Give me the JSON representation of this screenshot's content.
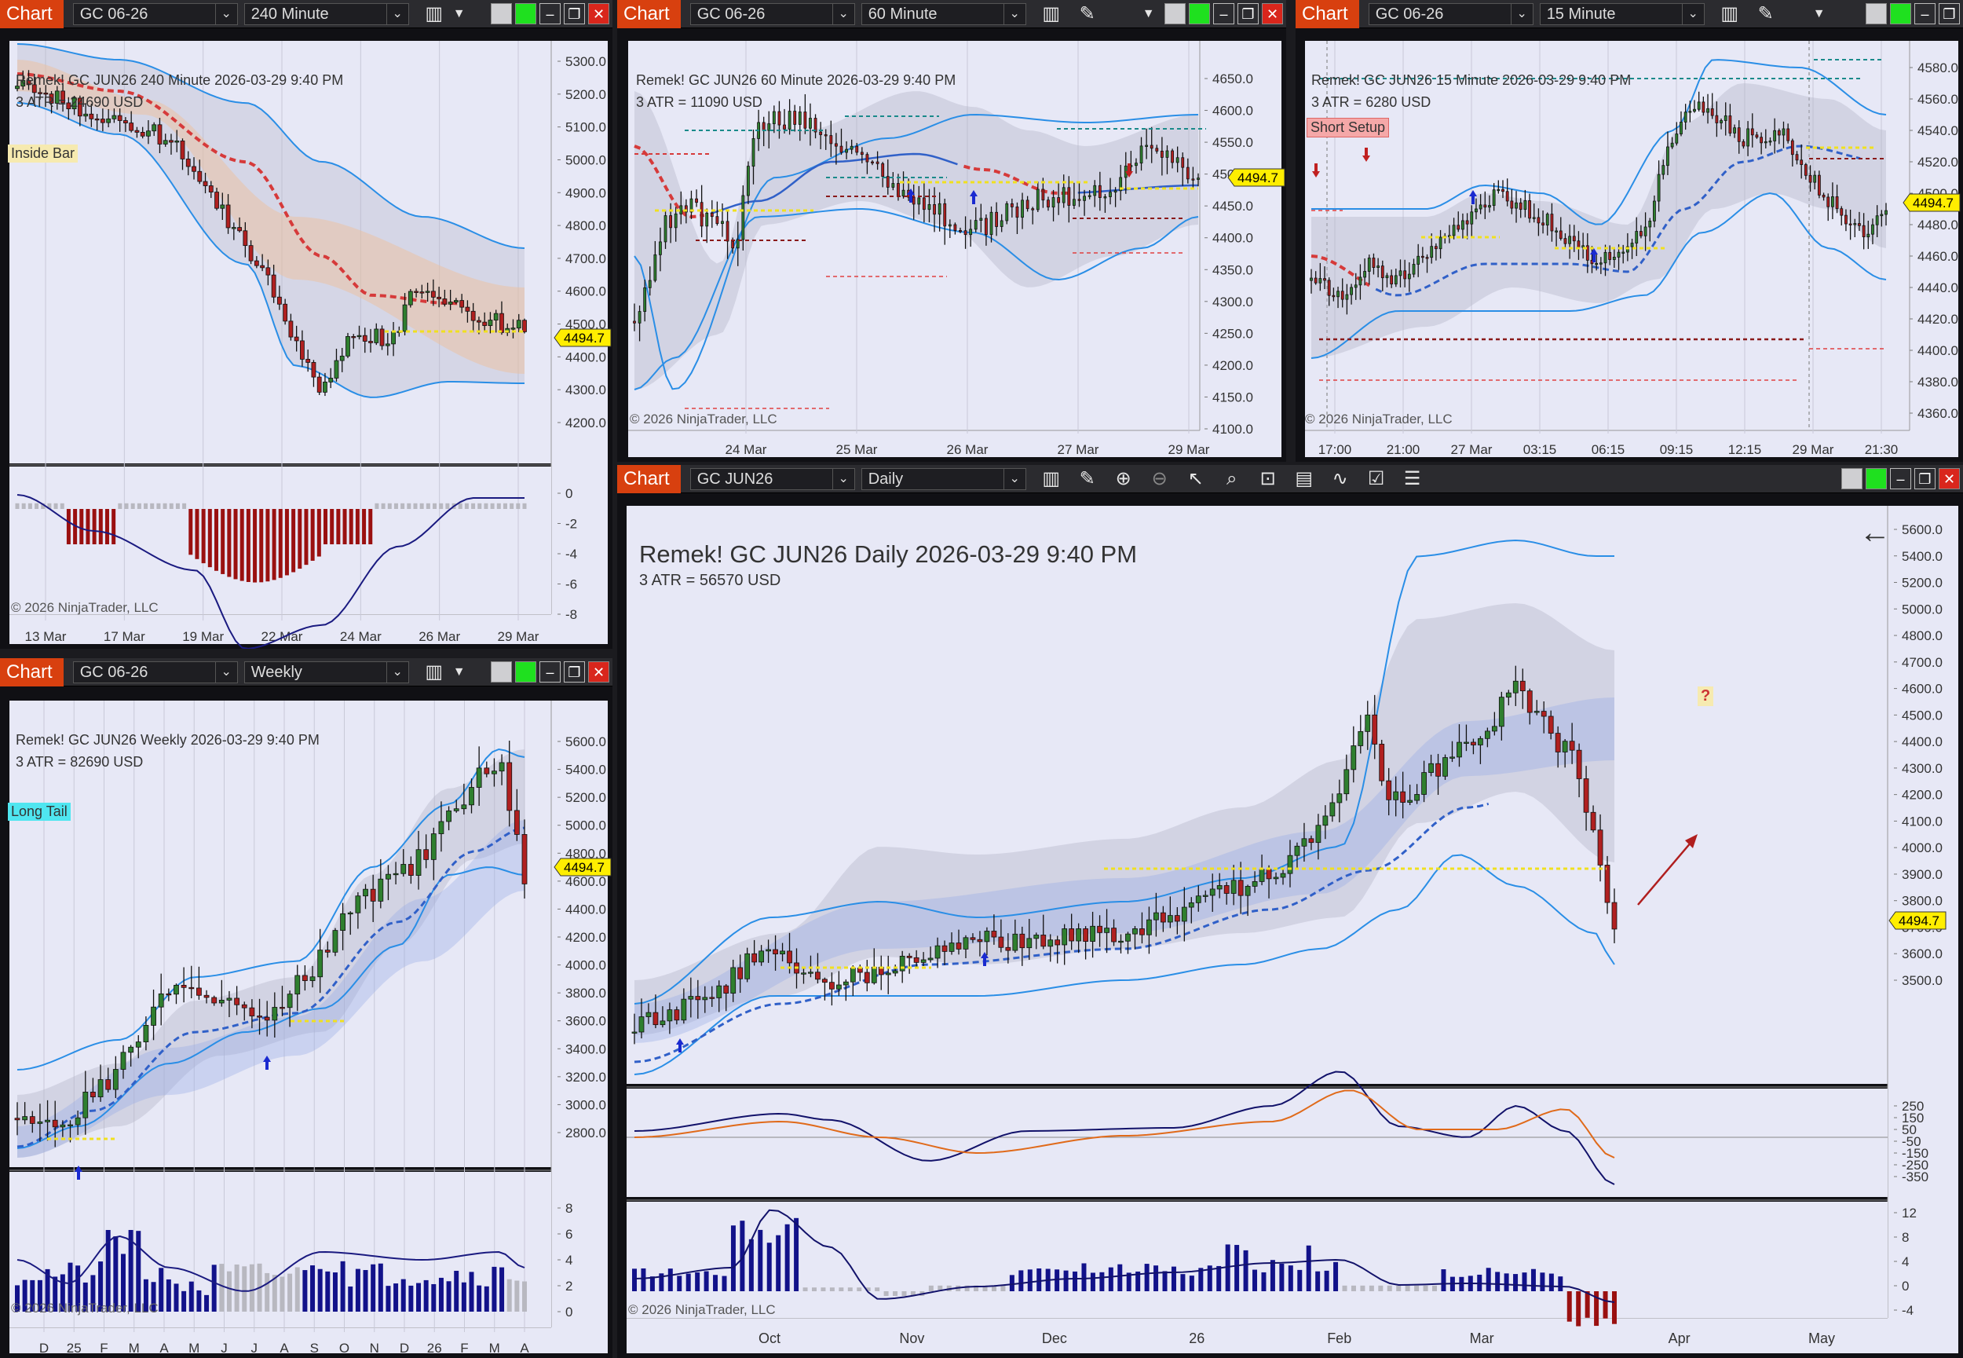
{
  "title_badge": "Chart",
  "last_price": "4494.7",
  "copyright": "© 2026 NinjaTrader, LLC",
  "windows": {
    "w240": {
      "instrument": "GC 06-26",
      "period": "240 Minute",
      "header": "Remek!  GC JUN26  240 Minute  2026-03-29 9:40 PM",
      "atr": "3 ATR = 24690 USD",
      "tag": "Inside Bar",
      "price_ticks": [
        "5300.0",
        "5200.0",
        "5100.0",
        "5000.0",
        "4900.0",
        "4800.0",
        "4700.0",
        "4600.0",
        "4500.0",
        "4400.0",
        "4300.0",
        "4200.0"
      ],
      "sub_ticks": [
        "0",
        "-2",
        "-4",
        "-6",
        "-8"
      ],
      "time_ticks": [
        "13 Mar",
        "17 Mar",
        "19 Mar",
        "22 Mar",
        "24 Mar",
        "26 Mar",
        "29 Mar"
      ]
    },
    "w60": {
      "instrument": "GC 06-26",
      "period": "60 Minute",
      "header": "Remek!  GC JUN26  60 Minute  2026-03-29 9:40 PM",
      "atr": "3 ATR = 11090 USD",
      "price_ticks": [
        "4650.0",
        "4600.0",
        "4550.0",
        "4500.0",
        "4450.0",
        "4400.0",
        "4350.0",
        "4300.0",
        "4250.0",
        "4200.0",
        "4150.0",
        "4100.0"
      ],
      "time_ticks": [
        "24 Mar",
        "25 Mar",
        "26 Mar",
        "27 Mar",
        "29 Mar"
      ]
    },
    "w15": {
      "instrument": "GC 06-26",
      "period": "15 Minute",
      "header": "Remek!  GC JUN26  15 Minute  2026-03-29 9:40 PM",
      "atr": "3 ATR = 6280 USD",
      "tag": "Short Setup",
      "price_ticks": [
        "4580.0",
        "4560.0",
        "4540.0",
        "4520.0",
        "4500.0",
        "4480.0",
        "4460.0",
        "4440.0",
        "4420.0",
        "4400.0",
        "4380.0",
        "4360.0"
      ],
      "time_ticks": [
        "17:00",
        "21:00",
        "27 Mar",
        "03:15",
        "06:15",
        "09:15",
        "12:15",
        "29 Mar",
        "21:30"
      ]
    },
    "wWeekly": {
      "instrument": "GC 06-26",
      "period": "Weekly",
      "header": "Remek!  GC JUN26  Weekly  2026-03-29 9:40 PM",
      "atr": "3 ATR = 82690 USD",
      "tag": "Long Tail",
      "price_ticks": [
        "5600.0",
        "5400.0",
        "5200.0",
        "5000.0",
        "4800.0",
        "4600.0",
        "4400.0",
        "4200.0",
        "4000.0",
        "3800.0",
        "3600.0",
        "3400.0",
        "3200.0",
        "3000.0",
        "2800.0"
      ],
      "sub_ticks": [
        "8",
        "6",
        "4",
        "2",
        "0"
      ],
      "time_ticks": [
        "D",
        "25",
        "F",
        "M",
        "A",
        "M",
        "J",
        "J",
        "A",
        "S",
        "O",
        "N",
        "D",
        "26",
        "F",
        "M",
        "A"
      ]
    },
    "wDaily": {
      "instrument": "GC JUN26",
      "period": "Daily",
      "header": "Remek!  GC JUN26  Daily  2026-03-29 9:40 PM",
      "atr": "3 ATR = 56570 USD",
      "question": "?",
      "price_ticks": [
        "5600.0",
        "5400.0",
        "5200.0",
        "5000.0",
        "4800.0",
        "4700.0",
        "4600.0",
        "4500.0",
        "4400.0",
        "4300.0",
        "4200.0",
        "4100.0",
        "4000.0",
        "3900.0",
        "3800.0",
        "3700.0",
        "3600.0",
        "3500.0"
      ],
      "macd_ticks": [
        "250",
        "150",
        "50",
        "-50",
        "-150",
        "-250",
        "-350"
      ],
      "sub_ticks": [
        "12",
        "8",
        "4",
        "0",
        "-4"
      ],
      "time_ticks": [
        "Oct",
        "Nov",
        "Dec",
        "26",
        "Feb",
        "Mar",
        "Apr",
        "May"
      ]
    }
  }
}
